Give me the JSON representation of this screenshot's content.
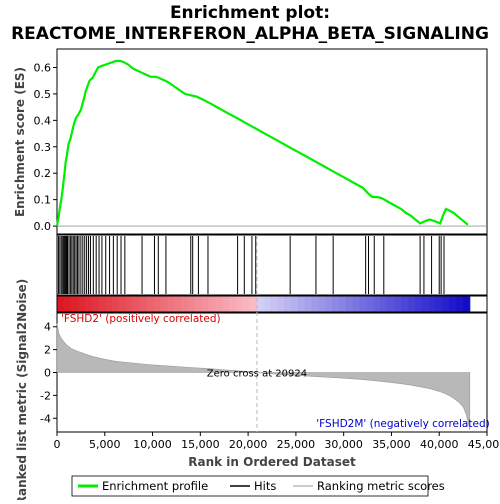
{
  "chart_data": {
    "type": "line",
    "title_line1": "Enrichment plot:",
    "title_line2": "REACTOME_INTERFERON_ALPHA_BETA_SIGNALING",
    "es_ylabel": "Enrichment score (ES)",
    "metric_ylabel_line1": "Ranked list metric (Signal2Noise)",
    "xlabel": "Rank in Ordered Dataset",
    "xlim": [
      0,
      45000
    ],
    "x_ticks": [
      0,
      5000,
      10000,
      15000,
      20000,
      25000,
      30000,
      35000,
      40000,
      45000
    ],
    "x_tick_labels": [
      "0",
      "5,000",
      "10,000",
      "15,000",
      "20,000",
      "25,000",
      "30,000",
      "35,000",
      "40,000",
      "45,000"
    ],
    "es_ylim": [
      -0.03,
      0.67
    ],
    "es_ticks": [
      0.0,
      0.1,
      0.2,
      0.3,
      0.4,
      0.5,
      0.6
    ],
    "es_tick_labels": [
      "0.0",
      "0.1",
      "0.2",
      "0.3",
      "0.4",
      "0.5",
      "0.6"
    ],
    "metric_ylim": [
      -5.2,
      5.2
    ],
    "metric_ticks": [
      4,
      2,
      0,
      -2,
      -4
    ],
    "metric_tick_labels": [
      "4",
      "2",
      "0",
      "-2",
      "-4"
    ],
    "total_genes": 43200,
    "zero_cross_rank": 20924,
    "zero_cross_label": "Zero cross at 20924",
    "positive_label": "'FSHD2' (positively correlated)",
    "negative_label": "'FSHD2M' (negatively correlated)",
    "enrichment_profile": {
      "x": [
        0,
        150,
        300,
        450,
        600,
        750,
        900,
        1050,
        1200,
        1400,
        1600,
        1800,
        2000,
        2200,
        2500,
        2800,
        3000,
        3200,
        3400,
        3700,
        4000,
        4300,
        4600,
        5000,
        5400,
        5800,
        6200,
        6600,
        7000,
        7500,
        8000,
        8600,
        9200,
        9800,
        10400,
        11000,
        11600,
        12200,
        12800,
        13400,
        14000,
        14600,
        15200,
        16000,
        17000,
        18000,
        19000,
        20000,
        21000,
        22000,
        23000,
        24000,
        25000,
        26000,
        27000,
        28000,
        29000,
        30000,
        31000,
        32000,
        32500,
        33000,
        33500,
        34000,
        34500,
        35000,
        35500,
        36000,
        36500,
        37000,
        37500,
        38000,
        38300,
        38600,
        39000,
        39400,
        39800,
        40100,
        40400,
        40700,
        41000,
        41500,
        42000,
        42500,
        43000
      ],
      "values": [
        0.0,
        0.03,
        0.07,
        0.1,
        0.14,
        0.19,
        0.24,
        0.27,
        0.31,
        0.33,
        0.36,
        0.39,
        0.41,
        0.42,
        0.44,
        0.48,
        0.51,
        0.53,
        0.55,
        0.56,
        0.58,
        0.6,
        0.605,
        0.61,
        0.615,
        0.62,
        0.625,
        0.625,
        0.62,
        0.61,
        0.595,
        0.585,
        0.575,
        0.565,
        0.565,
        0.555,
        0.545,
        0.53,
        0.515,
        0.5,
        0.495,
        0.49,
        0.48,
        0.465,
        0.445,
        0.425,
        0.405,
        0.385,
        0.365,
        0.345,
        0.325,
        0.305,
        0.285,
        0.265,
        0.245,
        0.225,
        0.205,
        0.185,
        0.165,
        0.145,
        0.125,
        0.11,
        0.11,
        0.105,
        0.095,
        0.085,
        0.075,
        0.065,
        0.05,
        0.04,
        0.025,
        0.01,
        0.015,
        0.02,
        0.025,
        0.02,
        0.015,
        0.01,
        0.04,
        0.065,
        0.06,
        0.05,
        0.035,
        0.02,
        0.005
      ]
    },
    "hit_ranks": [
      150,
      300,
      450,
      600,
      700,
      800,
      900,
      1000,
      1100,
      1250,
      1400,
      1550,
      1700,
      1850,
      2000,
      2150,
      2300,
      2500,
      2700,
      2900,
      3100,
      3300,
      3500,
      3800,
      4100,
      4400,
      4700,
      5100,
      5500,
      5900,
      6300,
      6700,
      7100,
      8900,
      10200,
      10600,
      11400,
      14000,
      14200,
      14800,
      15800,
      18900,
      19600,
      20400,
      20800,
      24400,
      27100,
      28900,
      32300,
      32600,
      33200,
      34200,
      38000,
      38400,
      39200,
      40000,
      40200,
      40500
    ],
    "metric_samples": {
      "x": [
        0,
        200,
        500,
        1000,
        1500,
        2000,
        3000,
        4000,
        5000,
        6000,
        7000,
        8000,
        9000,
        10000,
        12000,
        14000,
        16000,
        18000,
        20000,
        20924,
        22000,
        24000,
        26000,
        28000,
        30000,
        32000,
        34000,
        36000,
        37000,
        38000,
        39000,
        40000,
        40500,
        41000,
        41500,
        42000,
        42500,
        42800,
        43000,
        43200
      ],
      "values": [
        4.3,
        3.4,
        2.9,
        2.4,
        2.1,
        1.9,
        1.6,
        1.35,
        1.15,
        1.0,
        0.9,
        0.82,
        0.74,
        0.66,
        0.55,
        0.44,
        0.33,
        0.2,
        0.08,
        0.0,
        -0.08,
        -0.2,
        -0.3,
        -0.4,
        -0.5,
        -0.62,
        -0.78,
        -0.98,
        -1.1,
        -1.25,
        -1.42,
        -1.65,
        -1.8,
        -2.0,
        -2.25,
        -2.55,
        -3.0,
        -3.6,
        -4.3,
        -5.0
      ]
    },
    "legend": {
      "placement": "bottom",
      "items": [
        {
          "label": "Enrichment profile",
          "color": "#00ee00"
        },
        {
          "label": "Hits",
          "color": "#000000"
        },
        {
          "label": "Ranking metric scores",
          "color": "#bbbbbb"
        }
      ]
    },
    "colors": {
      "es_line": "#00ee00",
      "hit": "#000000",
      "metric_fill": "#b8b8b8",
      "positive_text": "#dd0000",
      "negative_text": "#0000cc",
      "zero_line": "#bbbbbb"
    }
  }
}
